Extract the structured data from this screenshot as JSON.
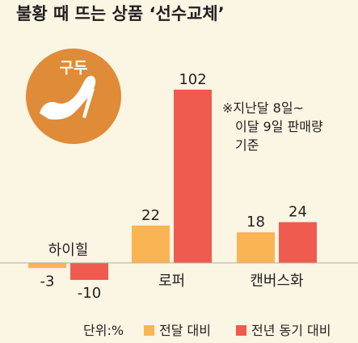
{
  "colors": {
    "background": "#fbf5e3",
    "prev_month": "#f9b554",
    "prev_year": "#ef5b4f",
    "badge": "#e08b37",
    "text": "#231f20",
    "baseline": "#b3ada3"
  },
  "icons": {
    "badge": "high-heel-shoe-icon"
  },
  "header": {
    "title": "불황 때 뜨는 상품 ‘선수교체’"
  },
  "badge": {
    "label": "구두"
  },
  "note": {
    "lines": [
      "※지난달 8일~",
      "이달 9일 판매량",
      "기준"
    ]
  },
  "legend": {
    "unit": "단위:%",
    "items": [
      "전달 대비",
      "전년 동기 대비"
    ]
  },
  "chart_data": {
    "type": "bar",
    "title": "불황 때 뜨는 상품 ‘선수교체’",
    "categories": [
      "하이힐",
      "로퍼",
      "캔버스화"
    ],
    "series": [
      {
        "name": "전달 대비",
        "values": [
          -3,
          22,
          18
        ]
      },
      {
        "name": "전년 동기 대비",
        "values": [
          -10,
          102,
          24
        ]
      }
    ],
    "unit": "단위:%",
    "baseline": 0,
    "grid": false,
    "legend_position": "bottom"
  }
}
